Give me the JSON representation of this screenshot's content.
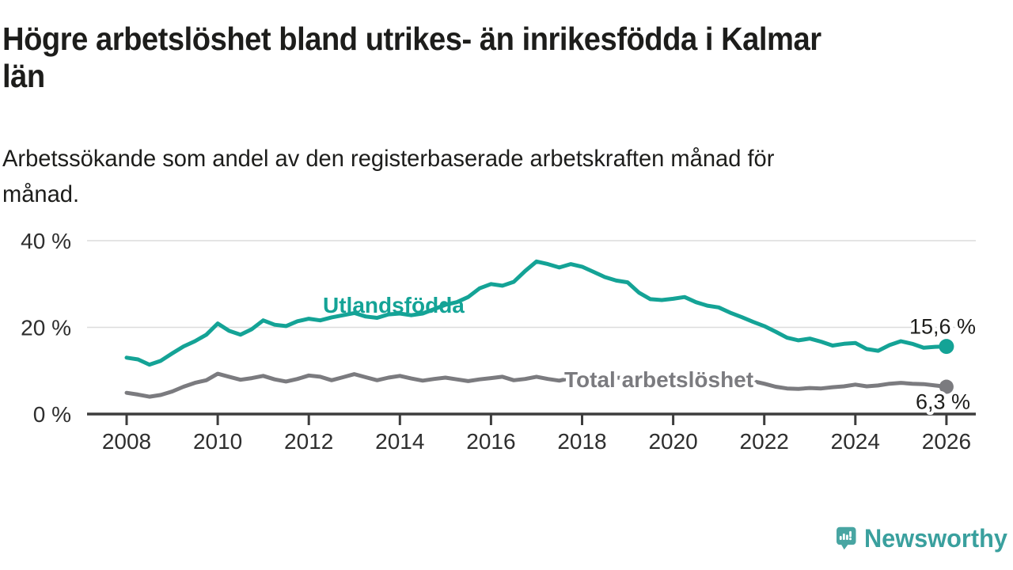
{
  "header": {
    "title_line1": "Högre arbetslöshet bland utrikes- än inrikesfödda i Kalmar",
    "title_line2": "län",
    "subtitle_line1": "Arbetssökande som andel av den registerbaserade arbetskraften månad för",
    "subtitle_line2": "månad."
  },
  "chart_data": {
    "type": "line",
    "title": "Högre arbetslöshet bland utrikes- än inrikesfödda i Kalmar län",
    "subtitle": "Arbetssökande som andel av den registerbaserade arbetskraften månad för månad.",
    "x_start": 2008,
    "x_step": 0.25,
    "xlim": [
      2008,
      2026
    ],
    "ylim": [
      0,
      42
    ],
    "grid": "horizontal-20-40",
    "x_tick_labels": [
      "2008",
      "2010",
      "2012",
      "2014",
      "2016",
      "2018",
      "2020",
      "2022",
      "2024",
      "2026"
    ],
    "x_tick_years": [
      2008,
      2010,
      2012,
      2014,
      2016,
      2018,
      2020,
      2022,
      2024,
      2026
    ],
    "y_ticks": [
      {
        "value": 0,
        "label": "0 %"
      },
      {
        "value": 20,
        "label": "20 %"
      },
      {
        "value": 40,
        "label": "40 %"
      }
    ],
    "gridline_values": [
      20,
      40
    ],
    "series": [
      {
        "name": "Utlandsfödda",
        "color": "#14a396",
        "end_label": "15,6 %",
        "end_value": 15.6,
        "values": [
          13.0,
          12.6,
          11.4,
          12.3,
          14.0,
          15.6,
          16.8,
          18.3,
          20.9,
          19.2,
          18.3,
          19.6,
          21.6,
          20.6,
          20.3,
          21.4,
          22.0,
          21.6,
          22.3,
          22.8,
          23.3,
          22.5,
          22.2,
          23.0,
          23.2,
          22.8,
          23.2,
          24.2,
          25.2,
          25.8,
          27.0,
          29.0,
          30.0,
          29.6,
          30.5,
          33.0,
          35.2,
          34.6,
          33.8,
          34.6,
          34.0,
          32.8,
          31.6,
          30.8,
          30.4,
          28.0,
          26.5,
          26.3,
          26.6,
          27.0,
          25.8,
          25.0,
          24.6,
          23.4,
          22.4,
          21.3,
          20.3,
          19.0,
          17.6,
          17.0,
          17.4,
          16.7,
          15.8,
          16.2,
          16.4,
          15.0,
          14.6,
          15.9,
          16.8,
          16.2,
          15.3,
          15.5,
          15.6
        ]
      },
      {
        "name": "Total arbetslöshet",
        "color": "#7b7b7f",
        "end_label": "6,3 %",
        "end_value": 6.3,
        "values": [
          4.9,
          4.5,
          4.0,
          4.4,
          5.2,
          6.3,
          7.2,
          7.8,
          9.3,
          8.6,
          7.9,
          8.3,
          8.8,
          8.0,
          7.5,
          8.1,
          8.9,
          8.6,
          7.8,
          8.5,
          9.2,
          8.5,
          7.8,
          8.4,
          8.8,
          8.2,
          7.7,
          8.1,
          8.4,
          8.0,
          7.6,
          8.0,
          8.3,
          8.6,
          7.8,
          8.1,
          8.6,
          8.1,
          7.7,
          8.3,
          8.8,
          8.1,
          8.6,
          8.4,
          8.3,
          7.9,
          8.1,
          8.3,
          8.5,
          8.8,
          8.9,
          8.6,
          8.4,
          8.2,
          7.9,
          7.6,
          7.0,
          6.3,
          5.9,
          5.8,
          6.0,
          5.9,
          6.2,
          6.4,
          6.8,
          6.4,
          6.6,
          7.0,
          7.2,
          7.0,
          6.9,
          6.6,
          6.3
        ]
      }
    ],
    "colors": {
      "axis": "#3d3d3d",
      "gridline": "#dcdcdc",
      "tick_text": "#2e2e2e",
      "value_label_text": "#1d1d1b"
    }
  },
  "footer": {
    "brand": "Newsworthy",
    "brand_color": "#3aa09e",
    "logo_icon": "bar-chart-speech-bubble",
    "logo_color": "#48a5a2"
  }
}
